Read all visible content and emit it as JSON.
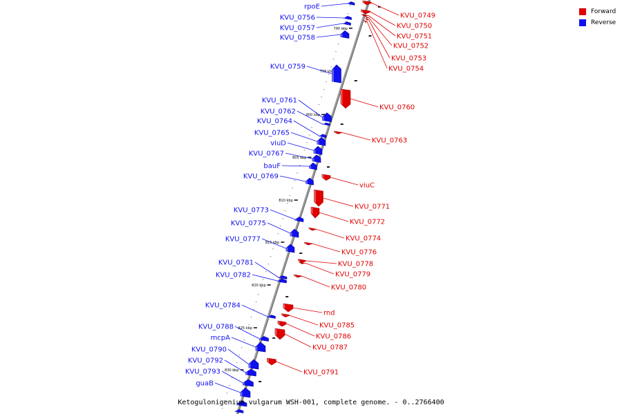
{
  "colors": {
    "forward": "#e00000",
    "forward_dark": "#a00000",
    "reverse": "#1010f0",
    "reverse_dark": "#0000a0",
    "backbone": "#888888",
    "tick": "#000000"
  },
  "legend": {
    "forward_label": "Forward",
    "reverse_label": "Reverse"
  },
  "caption": "Ketogulonigenium vulgarum WSH-001, complete genome. - 0..2766400",
  "scale_labels": [
    "790 kbp",
    "795 kbp",
    "800 kbp",
    "805 kbp",
    "810 kbp",
    "815 kbp",
    "820 kbp",
    "825 kbp",
    "830 kbp"
  ],
  "genes_reverse": [
    "rpoE",
    "KVU_0756",
    "KVU_0757",
    "KVU_0758",
    "KVU_0759",
    "KVU_0761",
    "KVU_0762",
    "KVU_0764",
    "KVU_0765",
    "viuD",
    "KVU_0767",
    "bauF",
    "KVU_0769",
    "KVU_0773",
    "KVU_0775",
    "KVU_0777",
    "KVU_0781",
    "KVU_0782",
    "KVU_0784",
    "KVU_0788",
    "mcpA",
    "KVU_0790",
    "KVU_0792",
    "KVU_0793",
    "guaB"
  ],
  "genes_forward": [
    "KVU_0749",
    "KVU_0750",
    "KVU_0751",
    "KVU_0752",
    "KVU_0753",
    "KVU_0754",
    "KVU_0760",
    "KVU_0763",
    "viuC",
    "KVU_0771",
    "KVU_0772",
    "KVU_0774",
    "KVU_0776",
    "KVU_0778",
    "KVU_0779",
    "KVU_0780",
    "rnd",
    "KVU_0785",
    "KVU_0786",
    "KVU_0787",
    "KVU_0791"
  ]
}
